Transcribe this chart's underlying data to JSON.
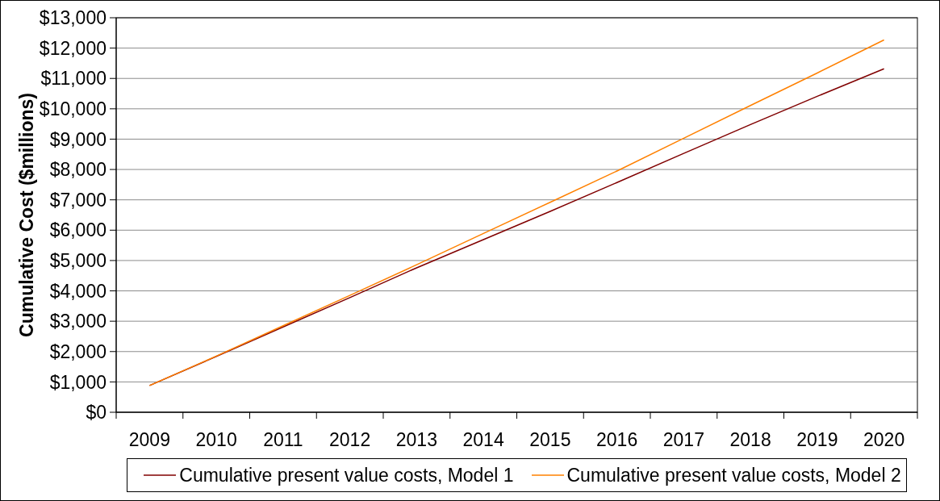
{
  "chart_data": {
    "type": "line",
    "ylabel": "Cumulative Cost ($millions)",
    "categories": [
      "2009",
      "2010",
      "2011",
      "2012",
      "2013",
      "2014",
      "2015",
      "2016",
      "2017",
      "2018",
      "2019",
      "2020"
    ],
    "series": [
      {
        "name": "Cumulative present value costs, Model 1",
        "color": "#800000",
        "values": [
          880,
          1840,
          2810,
          3780,
          4760,
          5690,
          6620,
          7570,
          8530,
          9480,
          10410,
          11320
        ]
      },
      {
        "name": "Cumulative present value costs, Model 2",
        "color": "#ff8000",
        "values": [
          880,
          1850,
          2850,
          3850,
          4860,
          5890,
          6920,
          7950,
          9030,
          10110,
          11180,
          12270
        ]
      }
    ],
    "ylim": [
      0,
      13000
    ],
    "yticks": [
      {
        "value": 0,
        "label": "$0"
      },
      {
        "value": 1000,
        "label": "$1,000"
      },
      {
        "value": 2000,
        "label": "$2,000"
      },
      {
        "value": 3000,
        "label": "$3,000"
      },
      {
        "value": 4000,
        "label": "$4,000"
      },
      {
        "value": 5000,
        "label": "$5,000"
      },
      {
        "value": 6000,
        "label": "$6,000"
      },
      {
        "value": 7000,
        "label": "$7,000"
      },
      {
        "value": 8000,
        "label": "$8,000"
      },
      {
        "value": 9000,
        "label": "$9,000"
      },
      {
        "value": 10000,
        "label": "$10,000"
      },
      {
        "value": 11000,
        "label": "$11,000"
      },
      {
        "value": 12000,
        "label": "$12,000"
      },
      {
        "value": 13000,
        "label": "$13,000"
      }
    ],
    "grid": "y",
    "legend": "bottom"
  }
}
